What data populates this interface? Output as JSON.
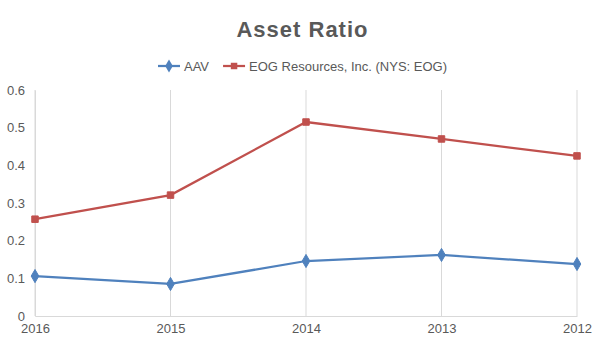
{
  "chart_data": {
    "type": "line",
    "title": "Asset Ratio",
    "categories": [
      "2016",
      "2015",
      "2014",
      "2013",
      "2012"
    ],
    "series": [
      {
        "name": "AAV",
        "color": "#4f81bd",
        "marker": "diamond",
        "values": [
          0.106,
          0.085,
          0.146,
          0.162,
          0.138
        ]
      },
      {
        "name": "EOG Resources, Inc. (NYS: EOG)",
        "color": "#c0504d",
        "marker": "square",
        "values": [
          0.257,
          0.321,
          0.515,
          0.47,
          0.425
        ]
      }
    ],
    "ylim": [
      0,
      0.6
    ],
    "yticks": [
      0,
      0.1,
      0.2,
      0.3,
      0.4,
      0.5,
      0.6
    ],
    "grid": true,
    "legend": "top"
  }
}
